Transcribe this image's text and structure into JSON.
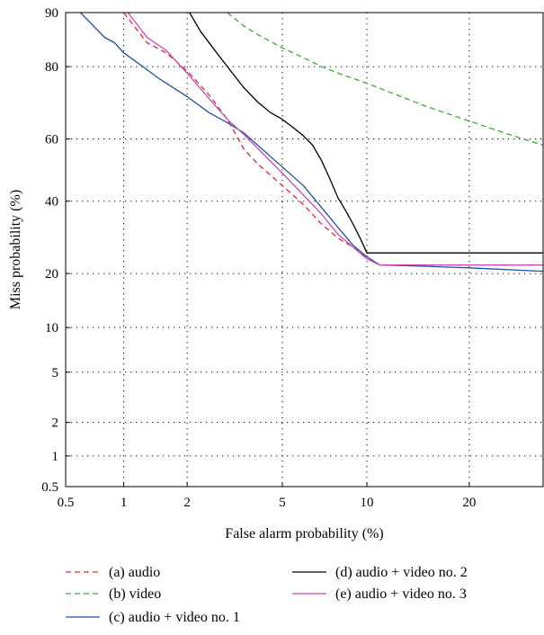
{
  "chart_data": {
    "type": "line",
    "scale": "normal-deviate",
    "xlabel": "False alarm probability (%)",
    "ylabel": "Miss probability (%)",
    "xlim": [
      0.5,
      30
    ],
    "ylim": [
      0.5,
      90
    ],
    "x_ticks": [
      0.5,
      1,
      2,
      5,
      10,
      20
    ],
    "y_ticks": [
      0.5,
      1,
      2,
      5,
      10,
      20,
      40,
      60,
      80,
      90
    ],
    "x_tick_labels": [
      "0.5",
      "1",
      "2",
      "5",
      "10",
      "20"
    ],
    "y_tick_labels": [
      "0.5",
      "1",
      "2",
      "5",
      "10",
      "20",
      "40",
      "60",
      "80",
      "90"
    ],
    "grid": true,
    "legend_position": "bottom",
    "series": [
      {
        "name": "(a) audio",
        "color": "#e8262b",
        "dash": "dashed",
        "points": [
          [
            1.0,
            90
          ],
          [
            1.3,
            85
          ],
          [
            1.6,
            83
          ],
          [
            2.0,
            79
          ],
          [
            2.5,
            73
          ],
          [
            3.0,
            66
          ],
          [
            3.5,
            57
          ],
          [
            4.0,
            52
          ],
          [
            5.0,
            45
          ],
          [
            6.0,
            39
          ],
          [
            7.0,
            33
          ],
          [
            8.0,
            29
          ],
          [
            9.0,
            26.5
          ],
          [
            10.0,
            24
          ],
          [
            11.0,
            22
          ],
          [
            15.0,
            22
          ],
          [
            20.0,
            22
          ],
          [
            30.0,
            22
          ]
        ]
      },
      {
        "name": "(b) video",
        "color": "#3aa935",
        "dash": "dashed",
        "points": [
          [
            3.0,
            90
          ],
          [
            3.5,
            88
          ],
          [
            4.0,
            86.5
          ],
          [
            5.0,
            84
          ],
          [
            6.0,
            82
          ],
          [
            7.0,
            80
          ],
          [
            8.0,
            78.5
          ],
          [
            10.0,
            76
          ],
          [
            12.0,
            73.5
          ],
          [
            15.0,
            70
          ],
          [
            20.0,
            65.5
          ],
          [
            25.0,
            61.5
          ],
          [
            30.0,
            58
          ]
        ]
      },
      {
        "name": "(c) audio + video no. 1",
        "color": "#1f4fa8",
        "dash": "solid",
        "points": [
          [
            0.6,
            90
          ],
          [
            0.7,
            88
          ],
          [
            0.8,
            86
          ],
          [
            0.9,
            85
          ],
          [
            1.0,
            83
          ],
          [
            1.2,
            80.5
          ],
          [
            1.5,
            77
          ],
          [
            2.0,
            72.5
          ],
          [
            2.5,
            68
          ],
          [
            3.0,
            65
          ],
          [
            3.5,
            62
          ],
          [
            4.0,
            58
          ],
          [
            5.0,
            51
          ],
          [
            6.0,
            45
          ],
          [
            7.0,
            38
          ],
          [
            8.0,
            32
          ],
          [
            9.0,
            27
          ],
          [
            10.0,
            24
          ],
          [
            11.0,
            22
          ],
          [
            15.0,
            21.7
          ],
          [
            20.0,
            21.3
          ],
          [
            30.0,
            20.5
          ]
        ]
      },
      {
        "name": "(d) audio + video no. 2",
        "color": "#000000",
        "dash": "solid",
        "points": [
          [
            2.05,
            90
          ],
          [
            2.3,
            87
          ],
          [
            2.6,
            84
          ],
          [
            3.0,
            80
          ],
          [
            3.5,
            75
          ],
          [
            4.0,
            71
          ],
          [
            4.5,
            68
          ],
          [
            5.0,
            66
          ],
          [
            5.5,
            63.5
          ],
          [
            6.0,
            61
          ],
          [
            6.5,
            58
          ],
          [
            7.0,
            53
          ],
          [
            7.5,
            47
          ],
          [
            8.0,
            41
          ],
          [
            8.5,
            37
          ],
          [
            9.0,
            33
          ],
          [
            9.5,
            29
          ],
          [
            10.0,
            25
          ],
          [
            15.0,
            25
          ],
          [
            20.0,
            25
          ],
          [
            30.0,
            25
          ]
        ]
      },
      {
        "name": "(e) audio + video no. 3",
        "color": "#cc47b5",
        "dash": "solid",
        "points": [
          [
            1.05,
            90
          ],
          [
            1.3,
            86
          ],
          [
            1.6,
            83.5
          ],
          [
            2.0,
            78.5
          ],
          [
            2.5,
            72
          ],
          [
            3.0,
            66
          ],
          [
            3.5,
            61.5
          ],
          [
            4.0,
            57
          ],
          [
            5.0,
            49
          ],
          [
            6.0,
            42
          ],
          [
            7.0,
            36
          ],
          [
            8.0,
            30
          ],
          [
            9.0,
            26.5
          ],
          [
            10.0,
            23.5
          ],
          [
            11.0,
            22
          ],
          [
            15.0,
            22
          ],
          [
            20.0,
            22
          ],
          [
            30.0,
            22
          ]
        ]
      }
    ]
  }
}
